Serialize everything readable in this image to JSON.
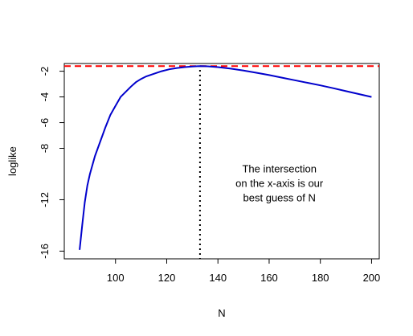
{
  "chart_data": {
    "type": "line",
    "title": "",
    "xlabel": "N",
    "ylabel": "loglike",
    "xlim": [
      80,
      203
    ],
    "ylim": [
      -16.6,
      -1.4
    ],
    "x_ticks": [
      100,
      120,
      140,
      160,
      180,
      200
    ],
    "x_tick_labels": [
      "100",
      "120",
      "140",
      "160",
      "180",
      "200"
    ],
    "y_ticks": [
      -2,
      -4,
      -6,
      -8,
      -12,
      -16
    ],
    "y_tick_labels": [
      "-2",
      "-4",
      "-6",
      "-8",
      "-12",
      "-16"
    ],
    "grid": false,
    "series": [
      {
        "color": "#0000cc",
        "x": [
          86,
          87,
          88,
          89,
          90,
          92,
          94,
          96,
          98,
          100,
          102,
          104,
          106,
          108,
          110,
          112,
          115,
          118,
          121,
          124,
          127,
          130,
          132,
          133,
          136,
          140,
          145,
          150,
          155,
          160,
          165,
          170,
          175,
          180,
          185,
          190,
          195,
          200
        ],
        "y": [
          -15.9,
          -14.0,
          -12.2,
          -10.9,
          -10.0,
          -8.6,
          -7.5,
          -6.4,
          -5.4,
          -4.7,
          -4.0,
          -3.6,
          -3.2,
          -2.85,
          -2.6,
          -2.4,
          -2.2,
          -2.0,
          -1.85,
          -1.75,
          -1.68,
          -1.63,
          -1.61,
          -1.6,
          -1.62,
          -1.68,
          -1.8,
          -1.95,
          -2.12,
          -2.3,
          -2.5,
          -2.7,
          -2.9,
          -3.1,
          -3.32,
          -3.55,
          -3.78,
          -4.0
        ]
      }
    ],
    "reference_lines": [
      {
        "orientation": "horizontal",
        "value": -1.6,
        "color": "#ff0000",
        "style": "dashed"
      },
      {
        "orientation": "vertical",
        "value": 133,
        "color": "#000000",
        "style": "dotted"
      }
    ],
    "annotation": {
      "lines": [
        "The intersection",
        "on the x-axis is our",
        "best guess of N"
      ],
      "x": 164,
      "y": -11.0
    }
  }
}
